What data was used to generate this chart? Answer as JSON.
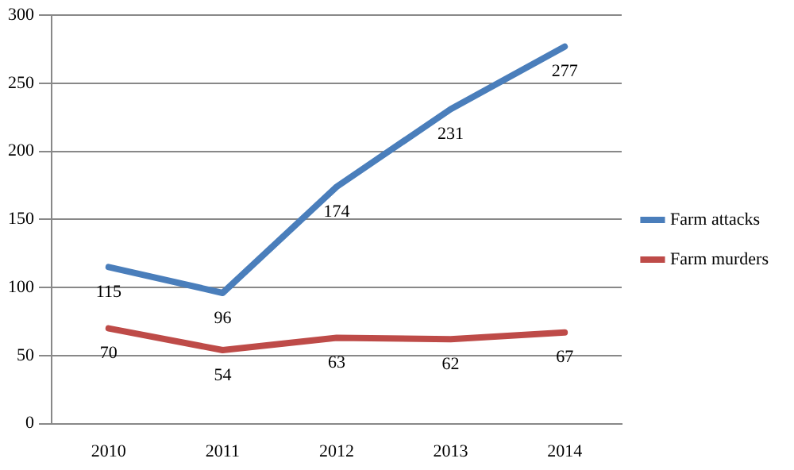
{
  "chart_data": {
    "type": "line",
    "categories": [
      "2010",
      "2011",
      "2012",
      "2013",
      "2014"
    ],
    "series": [
      {
        "name": "Farm attacks",
        "color": "#4a7ebb",
        "values": [
          115,
          96,
          174,
          231,
          277
        ]
      },
      {
        "name": "Farm murders",
        "color": "#be4b48",
        "values": [
          70,
          54,
          63,
          62,
          67
        ]
      }
    ],
    "ylim": [
      0,
      300
    ],
    "yticks": [
      0,
      50,
      100,
      150,
      200,
      250,
      300
    ],
    "grid": "y",
    "legend": "right",
    "data_labels": true,
    "marker": "none",
    "line_style": "solid"
  }
}
